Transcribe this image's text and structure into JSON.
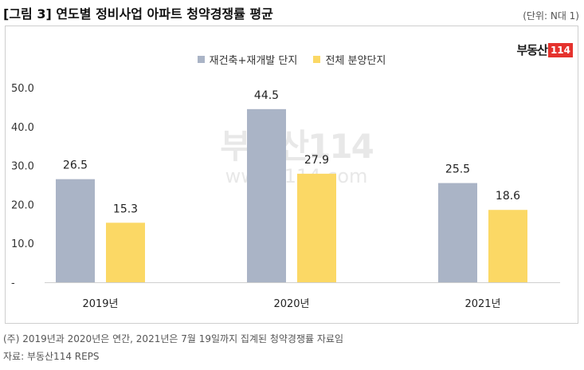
{
  "header": {
    "title": "[그림 3] 연도별 정비사업 아파트 청약경쟁률 평균",
    "unit": "(단위: N대 1)"
  },
  "logo": {
    "text": "부동산",
    "box": "114"
  },
  "watermark": {
    "logo": "부동산114",
    "url": "www.r114.com"
  },
  "colors": {
    "series1": "#aab4c6",
    "series2": "#fbd865"
  },
  "chart_data": {
    "type": "bar",
    "categories": [
      "2019년",
      "2020년",
      "2021년"
    ],
    "series": [
      {
        "name": "재건축+재개발 단지",
        "values": [
          26.5,
          44.5,
          25.5
        ],
        "labels": [
          "26.5",
          "44.5",
          "25.5"
        ]
      },
      {
        "name": "전체 분양단지",
        "values": [
          15.3,
          27.9,
          18.6
        ],
        "labels": [
          "15.3",
          "27.9",
          "18.6"
        ]
      }
    ],
    "yticks": [
      "-",
      "10.0",
      "20.0",
      "30.0",
      "40.0",
      "50.0"
    ],
    "ylim": [
      0,
      50
    ],
    "legend_position": "top-center",
    "grid": false
  },
  "footnotes": {
    "note": "(주) 2019년과 2020년은 연간, 2021년은 7월 19일까지 집계된 청약경쟁률 자료임",
    "source": "자료: 부동산114 REPS"
  }
}
